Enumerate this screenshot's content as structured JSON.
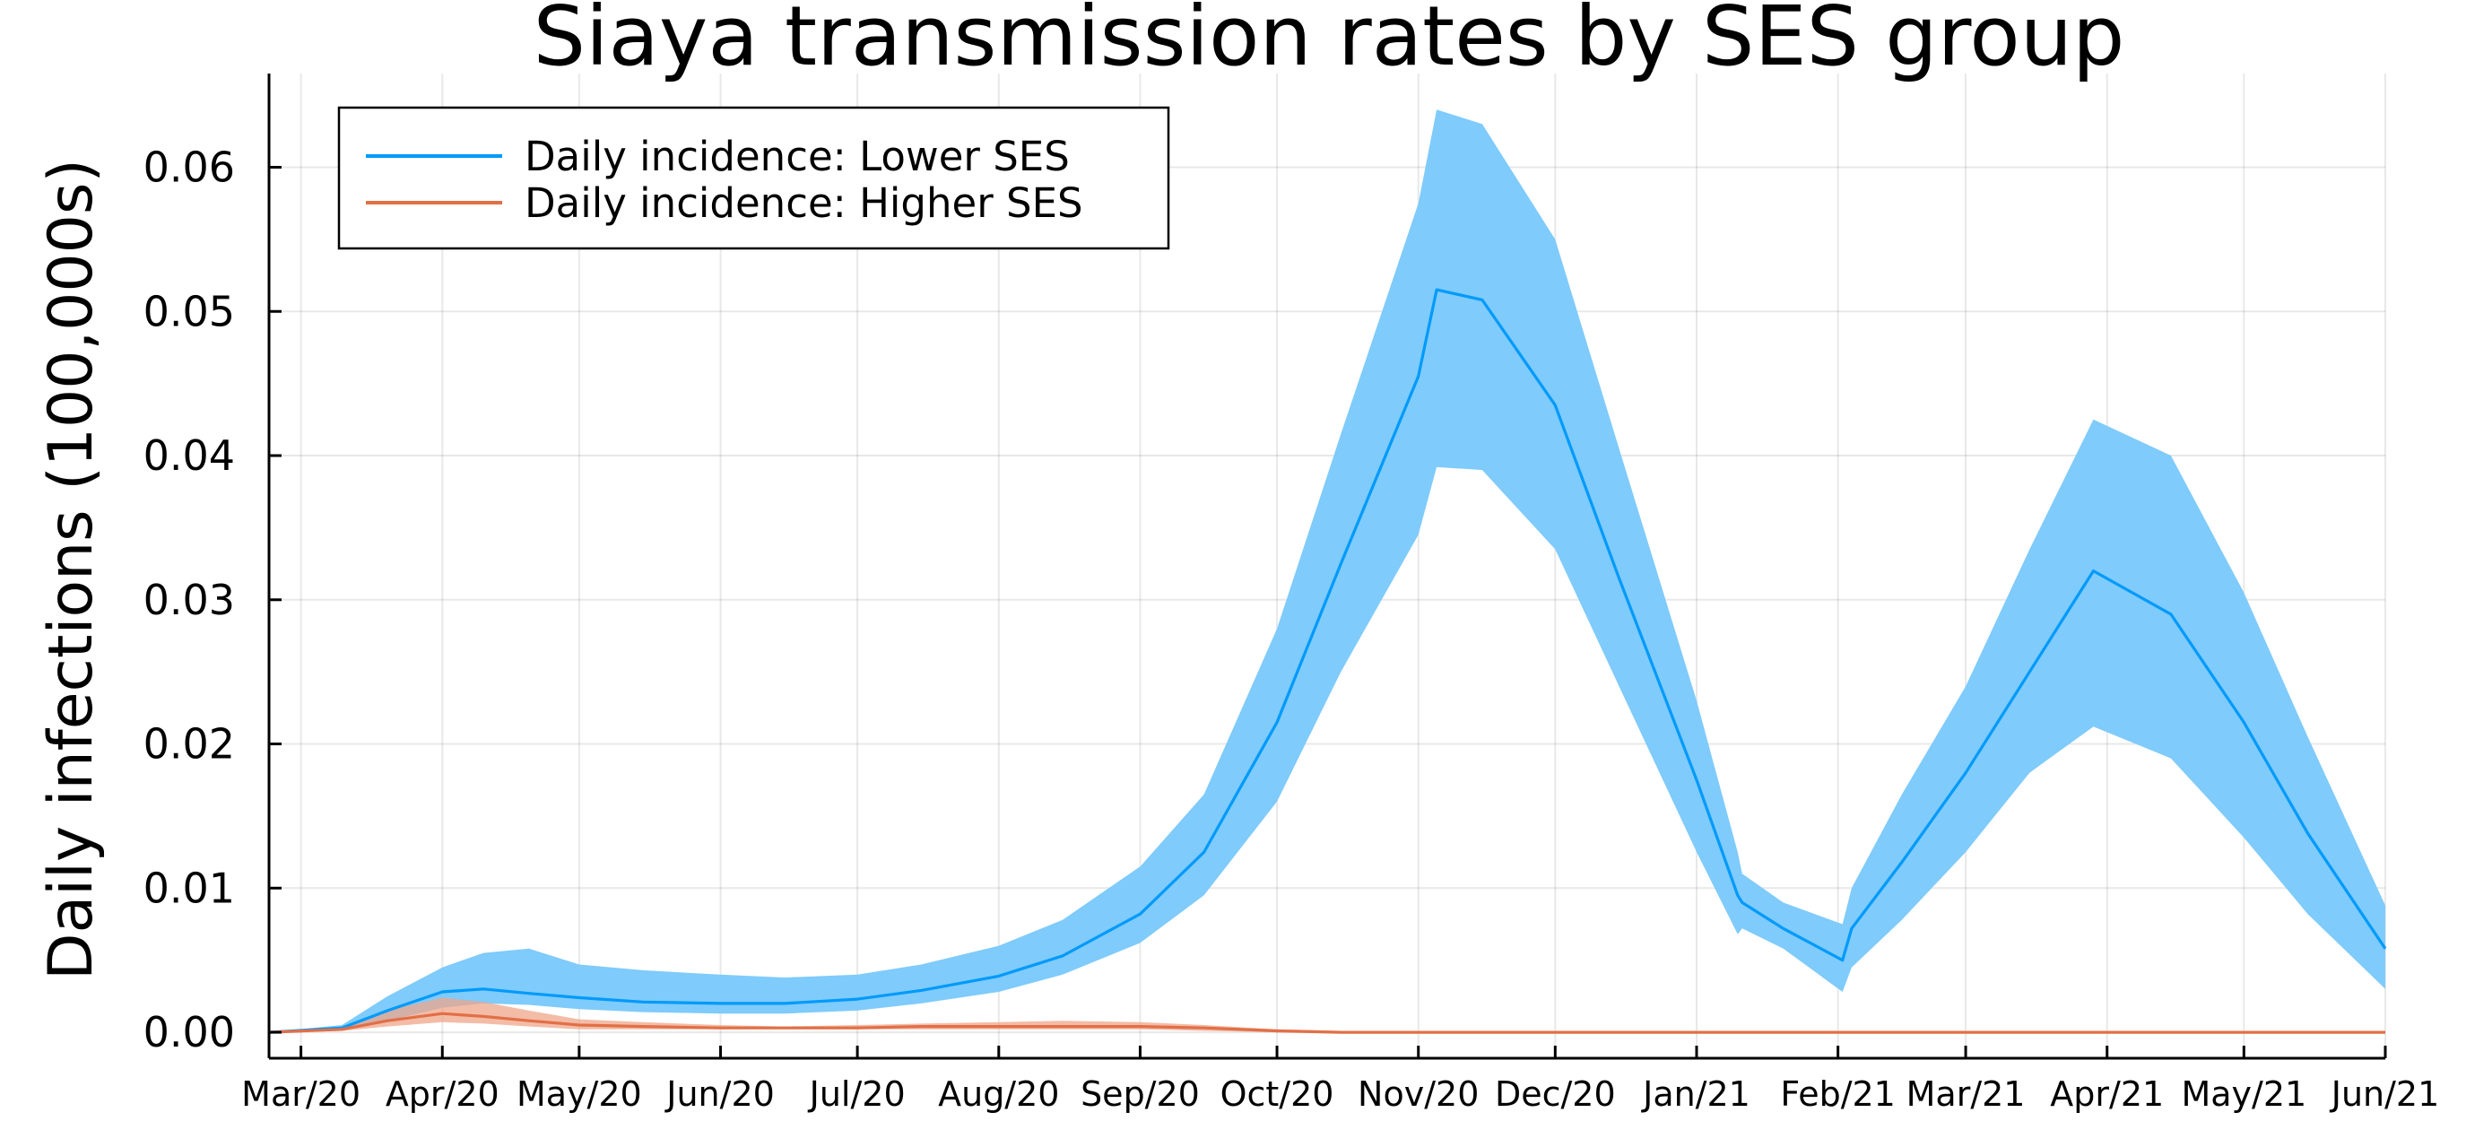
{
  "chart_data": {
    "type": "area",
    "title": "Siaya transmission rates by SES group",
    "xlabel": "",
    "ylabel": "Daily infections (100,000s)",
    "x_ticks": [
      "Mar/20",
      "Apr/20",
      "May/20",
      "Jun/20",
      "Jul/20",
      "Aug/20",
      "Sep/20",
      "Oct/20",
      "Nov/20",
      "Dec/20",
      "Jan/21",
      "Feb/21",
      "Mar/21",
      "Apr/21",
      "May/21",
      "Jun/21"
    ],
    "x_range": [
      "2020-02-23",
      "2021-06-01"
    ],
    "y_ticks": [
      "0.00",
      "0.01",
      "0.02",
      "0.03",
      "0.04",
      "0.05",
      "0.06"
    ],
    "ylim": [
      -0.0018,
      0.0665
    ],
    "grid": true,
    "legend_position": "top-left",
    "series": [
      {
        "name": "Daily incidence: Lower SES",
        "color": "#009AFA",
        "band_color": "#7FCBFB",
        "x": [
          "2020-02-23",
          "2020-03-10",
          "2020-03-20",
          "2020-04-01",
          "2020-04-10",
          "2020-04-20",
          "2020-05-01",
          "2020-05-15",
          "2020-06-01",
          "2020-06-15",
          "2020-07-01",
          "2020-07-15",
          "2020-08-01",
          "2020-08-15",
          "2020-09-01",
          "2020-09-15",
          "2020-10-01",
          "2020-10-15",
          "2020-11-01",
          "2020-11-05",
          "2020-11-15",
          "2020-12-01",
          "2020-12-15",
          "2021-01-01",
          "2021-01-10",
          "2021-01-11",
          "2021-01-20",
          "2021-02-02",
          "2021-02-04",
          "2021-02-15",
          "2021-03-01",
          "2021-03-15",
          "2021-03-29",
          "2021-04-15",
          "2021-05-01",
          "2021-05-15",
          "2021-06-01"
        ],
        "y": [
          0.0,
          0.0003,
          0.0015,
          0.0028,
          0.003,
          0.0027,
          0.0024,
          0.0021,
          0.002,
          0.002,
          0.0023,
          0.0029,
          0.0039,
          0.0053,
          0.0082,
          0.0125,
          0.0215,
          0.0325,
          0.0455,
          0.0515,
          0.0508,
          0.0435,
          0.0315,
          0.0175,
          0.0095,
          0.009,
          0.0072,
          0.005,
          0.0072,
          0.0118,
          0.018,
          0.025,
          0.032,
          0.029,
          0.0215,
          0.0138,
          0.0058
        ],
        "lower": [
          0.0,
          0.0001,
          0.0008,
          0.0017,
          0.002,
          0.0019,
          0.0016,
          0.0014,
          0.0013,
          0.0013,
          0.0015,
          0.002,
          0.0028,
          0.004,
          0.0062,
          0.0095,
          0.016,
          0.025,
          0.0345,
          0.0392,
          0.039,
          0.0335,
          0.024,
          0.0125,
          0.0068,
          0.0072,
          0.0058,
          0.0028,
          0.0045,
          0.0078,
          0.0125,
          0.018,
          0.0212,
          0.019,
          0.0135,
          0.0082,
          0.003
        ],
        "upper": [
          0.0,
          0.0005,
          0.0025,
          0.0045,
          0.0055,
          0.0058,
          0.0047,
          0.0043,
          0.004,
          0.0038,
          0.004,
          0.0047,
          0.006,
          0.0078,
          0.0115,
          0.0165,
          0.028,
          0.0415,
          0.0575,
          0.064,
          0.063,
          0.055,
          0.0405,
          0.023,
          0.0125,
          0.011,
          0.009,
          0.0075,
          0.01,
          0.0165,
          0.024,
          0.0335,
          0.0425,
          0.04,
          0.0305,
          0.0205,
          0.0088
        ]
      },
      {
        "name": "Daily incidence: Higher SES",
        "color": "#E26F46",
        "band_color": "#EFA68A",
        "x": [
          "2020-02-23",
          "2020-03-10",
          "2020-03-20",
          "2020-04-01",
          "2020-04-10",
          "2020-04-20",
          "2020-05-01",
          "2020-05-15",
          "2020-06-01",
          "2020-06-15",
          "2020-07-01",
          "2020-07-15",
          "2020-08-01",
          "2020-08-15",
          "2020-09-01",
          "2020-09-15",
          "2020-10-01",
          "2020-10-15",
          "2020-11-01",
          "2020-12-01",
          "2021-01-01",
          "2021-02-01",
          "2021-03-01",
          "2021-04-01",
          "2021-05-01",
          "2021-06-01"
        ],
        "y": [
          0.0,
          0.0002,
          0.0008,
          0.0013,
          0.0011,
          0.0008,
          0.0005,
          0.0004,
          0.0003,
          0.0003,
          0.0003,
          0.0004,
          0.0004,
          0.0004,
          0.0004,
          0.0003,
          0.0001,
          0.0,
          0.0,
          0.0,
          0.0,
          0.0,
          0.0,
          0.0,
          0.0,
          0.0
        ],
        "lower": [
          0.0,
          0.0001,
          0.0004,
          0.0007,
          0.0006,
          0.0004,
          0.0002,
          0.0002,
          0.0002,
          0.0002,
          0.0002,
          0.0002,
          0.0002,
          0.0002,
          0.0002,
          0.0001,
          0.0,
          0.0,
          0.0,
          0.0,
          0.0,
          0.0,
          0.0,
          0.0,
          0.0,
          0.0
        ],
        "upper": [
          0.0,
          0.0004,
          0.0015,
          0.0024,
          0.0021,
          0.0015,
          0.0009,
          0.0007,
          0.0005,
          0.0004,
          0.0005,
          0.0006,
          0.0007,
          0.0008,
          0.0007,
          0.0005,
          0.0002,
          0.0001,
          0.0,
          0.0,
          0.0,
          0.0,
          0.0,
          0.0,
          0.0,
          0.0
        ]
      }
    ]
  }
}
